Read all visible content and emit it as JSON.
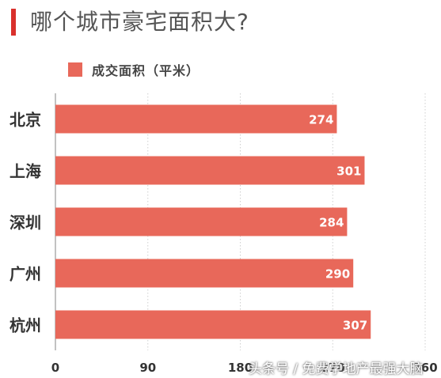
{
  "title": "哪个城市豪宅面积大?",
  "chart_data": {
    "type": "bar",
    "orientation": "horizontal",
    "title": "哪个城市豪宅面积大?",
    "categories": [
      "北京",
      "上海",
      "深圳",
      "广州",
      "杭州"
    ],
    "series": [
      {
        "name": "成交面积（平米）",
        "values": [
          274,
          301,
          284,
          290,
          307
        ]
      }
    ],
    "xlim": [
      0,
      360
    ],
    "xticks": [
      "0",
      "90",
      "180",
      "270",
      "360"
    ],
    "grid": true,
    "legend": "top-left",
    "bar_color": "#e8685a"
  },
  "watermark": "头条号 / 免费学地产最强大脑"
}
